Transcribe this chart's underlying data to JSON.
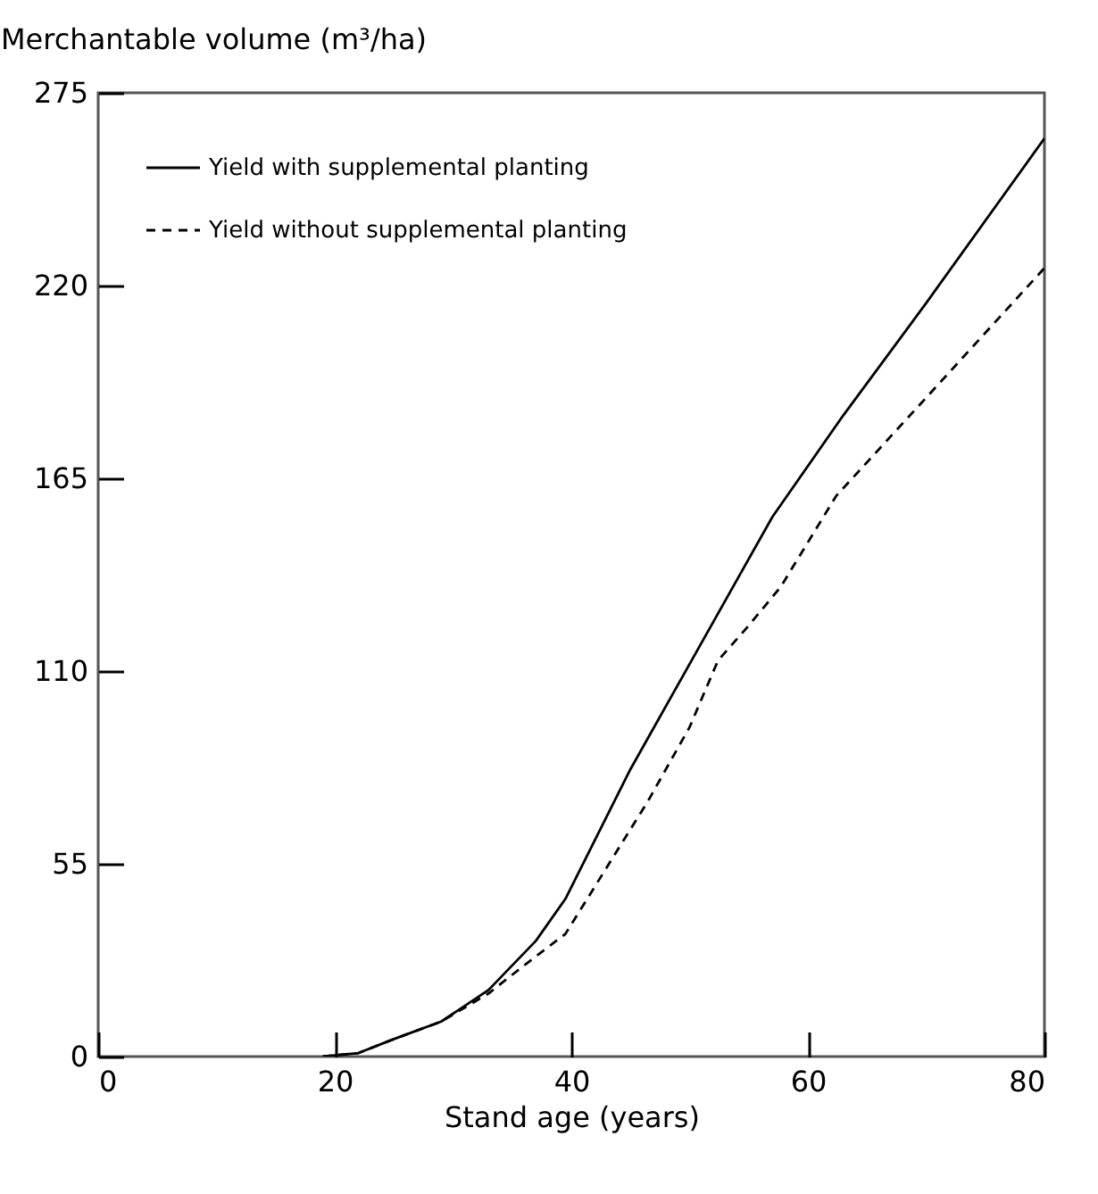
{
  "chart_data": {
    "type": "line",
    "xlabel": "Stand age (years)",
    "ylabel": "Merchantable volume (m³/ha)",
    "xlim": [
      0,
      80
    ],
    "ylim": [
      0,
      275
    ],
    "xticks": [
      0,
      20,
      40,
      60,
      80
    ],
    "yticks": [
      0,
      55,
      110,
      165,
      220,
      275
    ],
    "grid": false,
    "legend": "top left",
    "marker": "none",
    "series": [
      {
        "name": "Yield with supplemental planting",
        "color": "#000000",
        "line_style": "solid",
        "x": [
          19,
          22,
          25,
          29,
          33,
          37,
          39.5,
          45,
          50,
          54,
          57,
          63,
          70,
          80
        ],
        "values": [
          0,
          1,
          5,
          10,
          19,
          33,
          45,
          82,
          112,
          136,
          154,
          183,
          215,
          262
        ]
      },
      {
        "name": "Yield without supplemental planting",
        "color": "#000000",
        "line_style": "dashed",
        "x": [
          19,
          22,
          25,
          29,
          33,
          36,
          39.5,
          43,
          46.5,
          50,
          52.4,
          55,
          57.7,
          62.4,
          70,
          80
        ],
        "values": [
          0,
          1,
          5,
          10,
          18,
          26,
          35,
          54,
          73,
          94,
          113,
          123,
          134,
          160,
          188,
          225
        ]
      }
    ]
  }
}
